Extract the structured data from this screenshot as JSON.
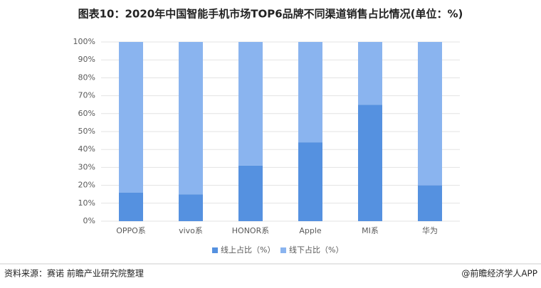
{
  "chart_data": {
    "type": "stacked-bar",
    "title": "图表10：2020年中国智能手机市场TOP6品牌不同渠道销售占比情况(单位：%)",
    "categories": [
      "OPPO系",
      "vivo系",
      "HONOR系",
      "Apple",
      "MI系",
      "华为"
    ],
    "series": [
      {
        "name": "线上占比（%）",
        "color": "#5591e0",
        "values": [
          16,
          15,
          31,
          44,
          65,
          20
        ]
      },
      {
        "name": "线下占比（%）",
        "color": "#8ab4ef",
        "values": [
          84,
          85,
          69,
          56,
          35,
          80
        ]
      }
    ],
    "ylim": [
      0,
      100
    ],
    "yticks": [
      {
        "value": 0,
        "label": "0%"
      },
      {
        "value": 10,
        "label": "10%"
      },
      {
        "value": 20,
        "label": "20%"
      },
      {
        "value": 30,
        "label": "30%"
      },
      {
        "value": 40,
        "label": "40%"
      },
      {
        "value": 50,
        "label": "50%"
      },
      {
        "value": 60,
        "label": "60%"
      },
      {
        "value": 70,
        "label": "70%"
      },
      {
        "value": 80,
        "label": "80%"
      },
      {
        "value": 90,
        "label": "90%"
      },
      {
        "value": 100,
        "label": "100%"
      }
    ],
    "grid": true,
    "legend": "bottom",
    "source": "资料来源：赛诺 前瞻产业研究院整理",
    "credit": "@前瞻经济学人APP"
  }
}
